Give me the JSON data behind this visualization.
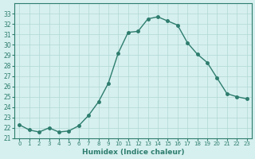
{
  "x": [
    0,
    1,
    2,
    3,
    4,
    5,
    6,
    7,
    8,
    9,
    10,
    11,
    12,
    13,
    14,
    15,
    16,
    17,
    18,
    19,
    20,
    21,
    22,
    23
  ],
  "y": [
    22.3,
    21.8,
    21.6,
    22.0,
    21.6,
    21.7,
    22.2,
    23.2,
    24.5,
    26.3,
    29.2,
    31.2,
    31.3,
    32.5,
    32.7,
    32.3,
    31.9,
    30.2,
    29.1,
    28.3,
    26.8,
    25.3,
    25.0,
    24.8
  ],
  "xlabel": "Humidex (Indice chaleur)",
  "ylabel": "",
  "line_color": "#2e7d6e",
  "marker_color": "#2e7d6e",
  "bg_color": "#d6f0ef",
  "grid_color": "#b0d8d5",
  "ylim": [
    21,
    34
  ],
  "xlim": [
    -0.5,
    23.5
  ],
  "yticks": [
    21,
    22,
    23,
    24,
    25,
    26,
    27,
    28,
    29,
    30,
    31,
    32,
    33
  ],
  "xticks": [
    0,
    1,
    2,
    3,
    4,
    5,
    6,
    7,
    8,
    9,
    10,
    11,
    12,
    13,
    14,
    15,
    16,
    17,
    18,
    19,
    20,
    21,
    22,
    23
  ]
}
